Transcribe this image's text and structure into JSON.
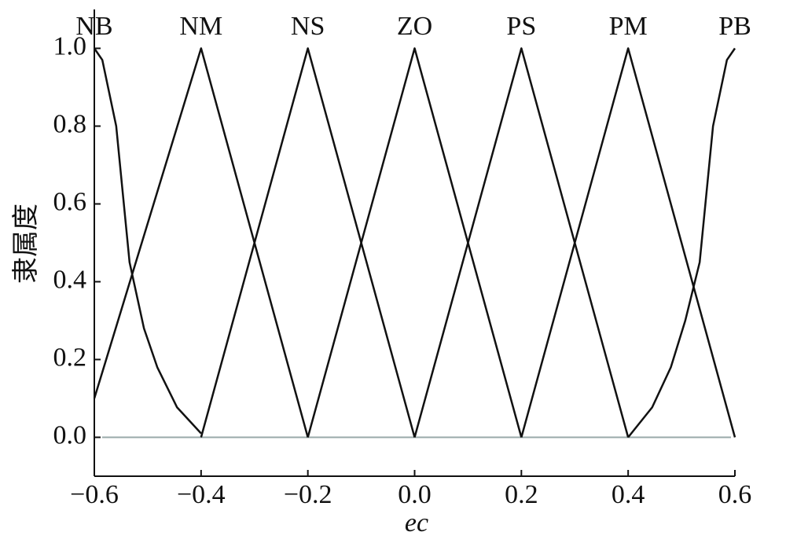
{
  "chart_data": {
    "type": "line",
    "xlabel": "ec",
    "ylabel": "隶属度",
    "xlim": [
      -0.6,
      0.6
    ],
    "ylim": [
      -0.1,
      1.1
    ],
    "xticks": [
      {
        "value": -0.6,
        "label": "−0.6"
      },
      {
        "value": -0.4,
        "label": "−0.4"
      },
      {
        "value": -0.2,
        "label": "−0.2"
      },
      {
        "value": 0,
        "label": "0.0"
      },
      0.2,
      0.4,
      0.6
    ],
    "yticks": [
      {
        "value": 0,
        "label": "0.0"
      },
      0.2,
      0.4,
      0.6,
      0.8,
      {
        "value": 1,
        "label": "1.0"
      }
    ],
    "series": [
      {
        "name": "NB",
        "color": "#111111",
        "x": [
          -0.6,
          -0.585,
          -0.559,
          -0.534,
          -0.507,
          -0.482,
          -0.445,
          -0.4
        ],
        "values": [
          1.0,
          0.97,
          0.8,
          0.45,
          0.28,
          0.18,
          0.077,
          0.01
        ]
      },
      {
        "name": "NM",
        "color": "#111111",
        "x": [
          -0.6,
          -0.4,
          -0.2
        ],
        "values": [
          0.1,
          1.0,
          0.0
        ]
      },
      {
        "name": "NS",
        "color": "#111111",
        "x": [
          -0.4,
          -0.2,
          0.0
        ],
        "values": [
          0.0,
          1.0,
          0.0
        ]
      },
      {
        "name": "ZO",
        "color": "#111111",
        "x": [
          -0.2,
          0.0,
          0.2
        ],
        "values": [
          0.0,
          1.0,
          0.0
        ]
      },
      {
        "name": "PS",
        "color": "#111111",
        "x": [
          0.0,
          0.2,
          0.4
        ],
        "values": [
          0.0,
          1.0,
          0.0
        ]
      },
      {
        "name": "PM",
        "color": "#111111",
        "x": [
          0.2,
          0.4,
          0.6
        ],
        "values": [
          0.0,
          1.0,
          0.0
        ]
      },
      {
        "name": "PB",
        "color": "#111111",
        "x": [
          0.4,
          0.445,
          0.48,
          0.507,
          0.534,
          0.559,
          0.585,
          0.6
        ],
        "values": [
          0.0,
          0.077,
          0.18,
          0.3,
          0.45,
          0.8,
          0.97,
          1.0
        ]
      }
    ]
  }
}
